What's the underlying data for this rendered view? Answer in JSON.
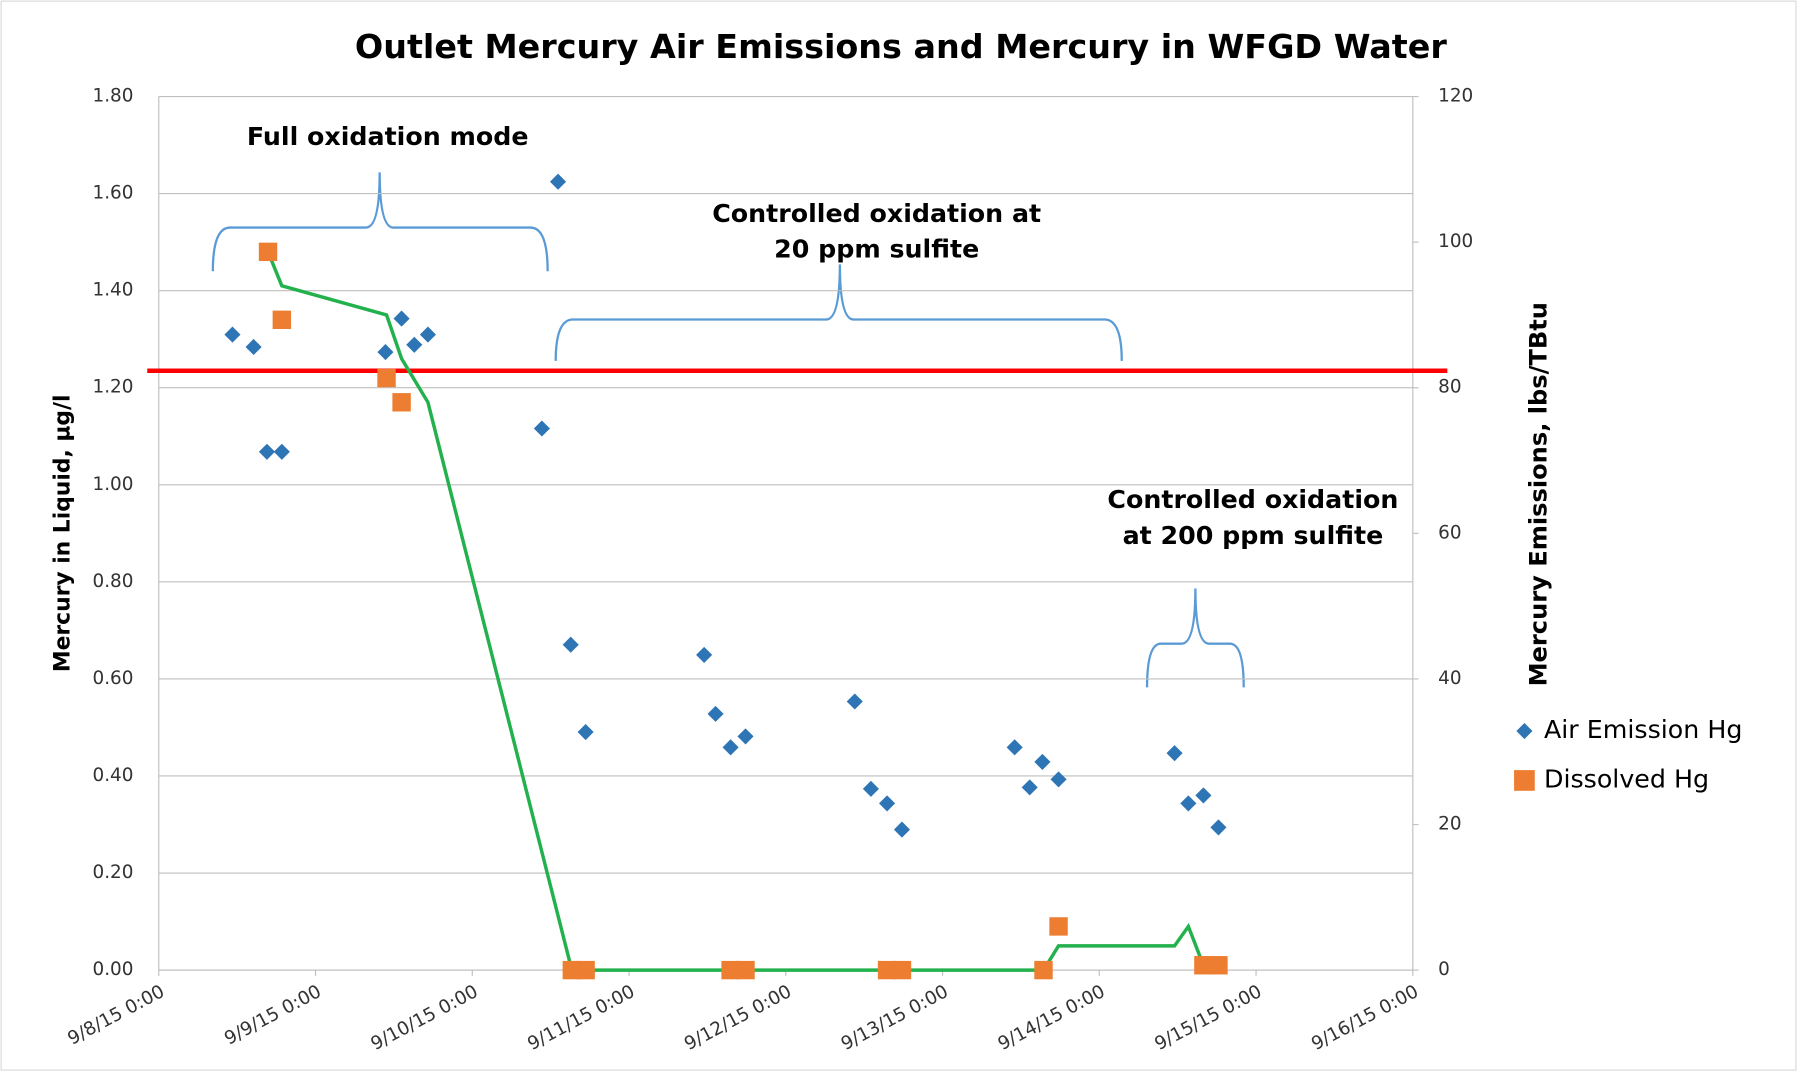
{
  "chart_data": {
    "type": "scatter",
    "title": "Outlet Mercury Air Emissions and Mercury in WFGD Water",
    "ylabel": "Mercury in Liquid, µg/l",
    "y2label": "Mercury Emissions,  lbs/TBtu",
    "xlim": [
      0,
      8
    ],
    "xticks": [
      {
        "value": 0,
        "label": "9/8/15 0:00"
      },
      {
        "value": 1,
        "label": "9/9/15 0:00"
      },
      {
        "value": 2,
        "label": "9/10/15 0:00"
      },
      {
        "value": 3,
        "label": "9/11/15 0:00"
      },
      {
        "value": 4,
        "label": "9/12/15 0:00"
      },
      {
        "value": 5,
        "label": "9/13/15 0:00"
      },
      {
        "value": 6,
        "label": "9/14/15 0:00"
      },
      {
        "value": 7,
        "label": "9/15/15 0:00"
      },
      {
        "value": 8,
        "label": "9/16/15 0:00"
      }
    ],
    "ylim": [
      0,
      1.8
    ],
    "yticks": [
      {
        "value": 0,
        "label": "0.00"
      },
      {
        "value": 0.2,
        "label": "0.20"
      },
      {
        "value": 0.4,
        "label": "0.40"
      },
      {
        "value": 0.6,
        "label": "0.60"
      },
      {
        "value": 0.8,
        "label": "0.80"
      },
      {
        "value": 1.0,
        "label": "1.00"
      },
      {
        "value": 1.2,
        "label": "1.20"
      },
      {
        "value": 1.4,
        "label": "1.40"
      },
      {
        "value": 1.6,
        "label": "1.60"
      },
      {
        "value": 1.8,
        "label": "1.80"
      }
    ],
    "y2lim": [
      0,
      120
    ],
    "y2ticks": [
      0,
      20,
      40,
      60,
      80,
      100,
      120
    ],
    "grid": true,
    "legend": "right",
    "series": [
      {
        "name": "Air Emission Hg",
        "color": "#2e75b6",
        "marker": "diamond",
        "axis": "y2",
        "x": [
          0.47,
          0.605,
          0.69,
          0.785,
          1.446,
          1.549,
          1.63,
          1.717,
          2.444,
          2.547,
          2.628,
          2.723,
          3.479,
          3.552,
          3.648,
          3.743,
          4.44,
          4.543,
          4.646,
          4.741,
          5.46,
          5.556,
          5.637,
          5.74,
          6.48,
          6.568,
          6.664,
          6.76
        ],
        "values": [
          87.3,
          85.6,
          71.2,
          71.2,
          84.9,
          89.5,
          85.9,
          87.3,
          74.4,
          108.3,
          44.7,
          32.7,
          43.3,
          35.2,
          30.6,
          32.1,
          36.9,
          24.9,
          22.9,
          19.3,
          30.6,
          25.1,
          28.6,
          26.2,
          29.8,
          22.9,
          24.0,
          19.6
        ]
      },
      {
        "name": "Dissolved Hg",
        "color": "#ed7d31",
        "marker": "square",
        "x": [
          0.697,
          0.785,
          1.453,
          1.549,
          2.635,
          2.723,
          3.648,
          3.743,
          4.646,
          4.741,
          5.644,
          5.74,
          6.664,
          6.76
        ],
        "values": [
          1.48,
          1.34,
          1.22,
          1.17,
          0.0,
          0.0,
          0.0,
          0.0,
          0.0,
          0.0,
          0.0,
          0.09,
          0.01,
          0.01
        ]
      },
      {
        "color": "#22b14c",
        "marker": "line",
        "x": [
          0.697,
          0.785,
          1.453,
          1.549,
          1.717,
          2.635,
          3.743,
          5.644,
          5.74,
          6.48,
          6.568,
          6.664,
          6.76
        ],
        "values": [
          1.48,
          1.41,
          1.35,
          1.26,
          1.17,
          0.0,
          0.0,
          0.0,
          0.05,
          0.05,
          0.09,
          0.01,
          0.01
        ]
      }
    ],
    "reference_lines": [
      {
        "value": 1.235,
        "color": "#ff0000"
      }
    ],
    "annotations": [
      {
        "lines": [
          "Full oxidation mode"
        ]
      },
      {
        "lines": [
          "Controlled oxidation at",
          "20 ppm sulfite"
        ]
      },
      {
        "lines": [
          "Controlled oxidation",
          "at 200 ppm sulfite"
        ]
      }
    ]
  }
}
